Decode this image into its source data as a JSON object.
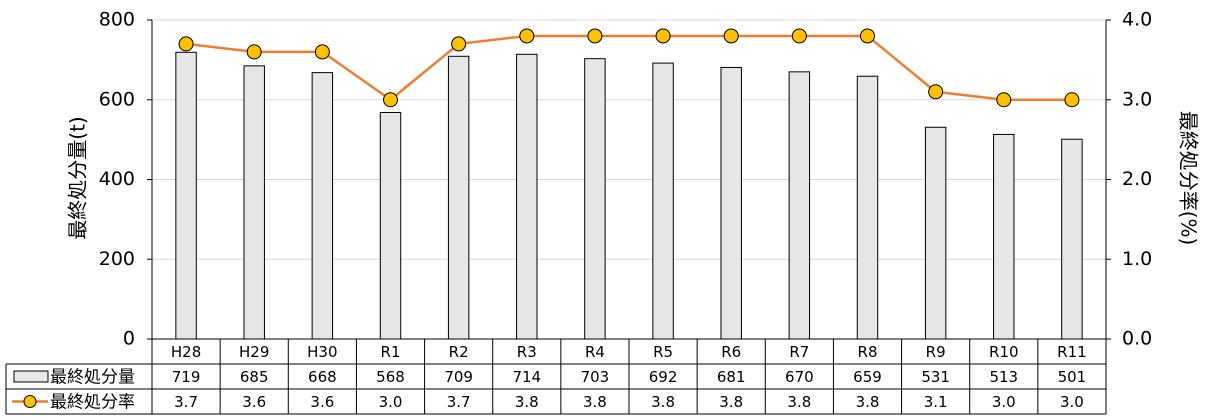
{
  "chart_data": {
    "type": "bar",
    "categories": [
      "H28",
      "H29",
      "H30",
      "R1",
      "R2",
      "R3",
      "R4",
      "R5",
      "R6",
      "R7",
      "R8",
      "R9",
      "R10",
      "R11"
    ],
    "series": [
      {
        "name": "最終処分量",
        "type": "bar",
        "axis": "left",
        "values": [
          719,
          685,
          668,
          568,
          709,
          714,
          703,
          692,
          681,
          670,
          659,
          531,
          513,
          501
        ],
        "table_values": [
          "719",
          "685",
          "668",
          "568",
          "709",
          "714",
          "703",
          "692",
          "681",
          "670",
          "659",
          "531",
          "513",
          "501"
        ],
        "color": "#e6e6e6"
      },
      {
        "name": "最終処分率",
        "type": "line",
        "axis": "right",
        "values": [
          3.7,
          3.6,
          3.6,
          3.0,
          3.7,
          3.8,
          3.8,
          3.8,
          3.8,
          3.8,
          3.8,
          3.1,
          3.0,
          3.0
        ],
        "table_values": [
          "3.7",
          "3.6",
          "3.6",
          "3.0",
          "3.7",
          "3.8",
          "3.8",
          "3.8",
          "3.8",
          "3.8",
          "3.8",
          "3.1",
          "3.0",
          "3.0"
        ],
        "color": "#ed7d31",
        "marker_color": "#ffc000"
      }
    ],
    "ylabel": "最終処分量(t)",
    "y2label": "最終処分率(%)",
    "ylim": [
      0,
      800
    ],
    "y2lim": [
      0.0,
      4.0
    ],
    "yticks": [
      "0",
      "200",
      "400",
      "600",
      "800"
    ],
    "y2ticks": [
      "0.0",
      "1.0",
      "2.0",
      "3.0",
      "4.0"
    ],
    "grid": true,
    "legend": "data-table"
  }
}
